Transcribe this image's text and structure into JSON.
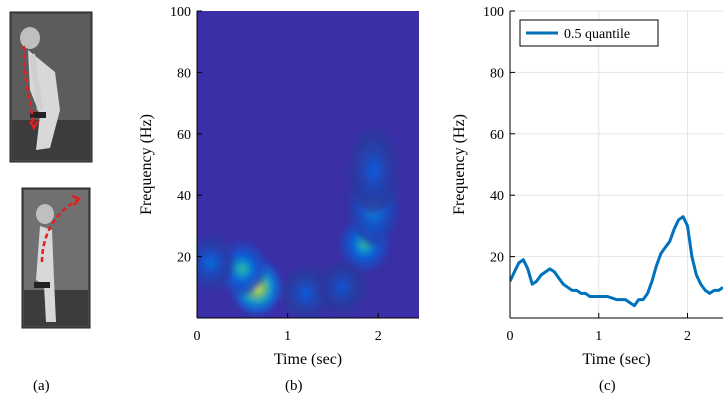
{
  "panels": {
    "a": {
      "caption": "(a)"
    },
    "b": {
      "caption": "(b)"
    },
    "c": {
      "caption": "(c)"
    }
  },
  "chart_data": [
    {
      "type": "heatmap",
      "panel": "b",
      "xlabel": "Time (sec)",
      "ylabel": "Frequency (Hz)",
      "xlim": [
        0,
        2.45
      ],
      "ylim": [
        0,
        100
      ],
      "xticks": [
        0,
        1,
        2
      ],
      "yticks": [
        20,
        40,
        60,
        80,
        100
      ],
      "colormap": "parula",
      "background_color": "#3a2fa6",
      "hotspots": [
        {
          "t": 0.66,
          "f": 10,
          "intensity": 1.0
        },
        {
          "t": 0.5,
          "f": 16,
          "intensity": 0.55
        },
        {
          "t": 0.15,
          "f": 18,
          "intensity": 0.3
        },
        {
          "t": 1.85,
          "f": 24,
          "intensity": 0.55
        },
        {
          "t": 1.95,
          "f": 37,
          "intensity": 0.45
        },
        {
          "t": 1.95,
          "f": 48,
          "intensity": 0.25
        },
        {
          "t": 1.2,
          "f": 8,
          "intensity": 0.25
        },
        {
          "t": 1.6,
          "f": 10,
          "intensity": 0.22
        }
      ]
    },
    {
      "type": "line",
      "panel": "c",
      "xlabel": "Time (sec)",
      "ylabel": "Frequency (Hz)",
      "xlim": [
        0,
        2.4
      ],
      "ylim": [
        0,
        100
      ],
      "xticks": [
        0,
        1,
        2
      ],
      "yticks": [
        20,
        40,
        60,
        80,
        100
      ],
      "grid": true,
      "legend": "top-left",
      "series": [
        {
          "name": "0.5 quantile",
          "color": "#0072bd",
          "x": [
            0,
            0.05,
            0.1,
            0.15,
            0.2,
            0.25,
            0.3,
            0.35,
            0.4,
            0.45,
            0.5,
            0.55,
            0.6,
            0.65,
            0.7,
            0.75,
            0.8,
            0.85,
            0.9,
            0.95,
            1.0,
            1.1,
            1.2,
            1.3,
            1.35,
            1.4,
            1.45,
            1.5,
            1.55,
            1.6,
            1.65,
            1.7,
            1.75,
            1.8,
            1.85,
            1.9,
            1.95,
            2.0,
            2.05,
            2.1,
            2.15,
            2.2,
            2.25,
            2.3,
            2.35,
            2.4
          ],
          "y": [
            12,
            15,
            18,
            19,
            16,
            11,
            12,
            14,
            15,
            16,
            15,
            13,
            11,
            10,
            9,
            9,
            8,
            8,
            7,
            7,
            7,
            7,
            6,
            6,
            5,
            4,
            6,
            6,
            8,
            12,
            17,
            21,
            23,
            25,
            29,
            32,
            33,
            30,
            20,
            14,
            11,
            9,
            8,
            9,
            9,
            10
          ]
        }
      ]
    }
  ]
}
